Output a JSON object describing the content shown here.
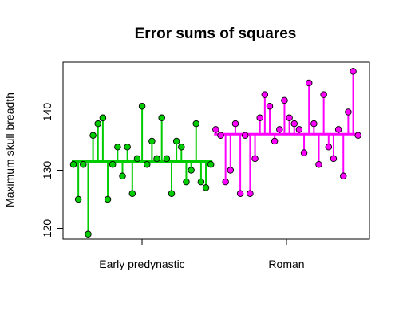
{
  "chart_data": {
    "type": "scatter",
    "title": "Error sums of squares",
    "xlabel": "",
    "ylabel": "Maximum skull breadth",
    "ylim": [
      118,
      148
    ],
    "y_ticks": [
      120,
      130,
      140
    ],
    "categories": [
      "Early predynastic",
      "Roman"
    ],
    "grid": false,
    "series": [
      {
        "name": "Early predynastic",
        "color": "#00cd00",
        "mean": 131.5,
        "values": [
          131,
          125,
          131,
          119,
          136,
          138,
          139,
          125,
          131,
          134,
          129,
          134,
          126,
          132,
          141,
          131,
          135,
          132,
          139,
          132,
          126,
          135,
          134,
          128,
          130,
          138,
          128,
          127,
          131
        ]
      },
      {
        "name": "Roman",
        "color": "#ff00ff",
        "mean": 136.2,
        "values": [
          137,
          136,
          128,
          130,
          138,
          126,
          136,
          126,
          132,
          139,
          143,
          141,
          135,
          137,
          142,
          139,
          138,
          137,
          133,
          145,
          138,
          131,
          143,
          134,
          132,
          137,
          129,
          140,
          147,
          136
        ]
      }
    ]
  }
}
